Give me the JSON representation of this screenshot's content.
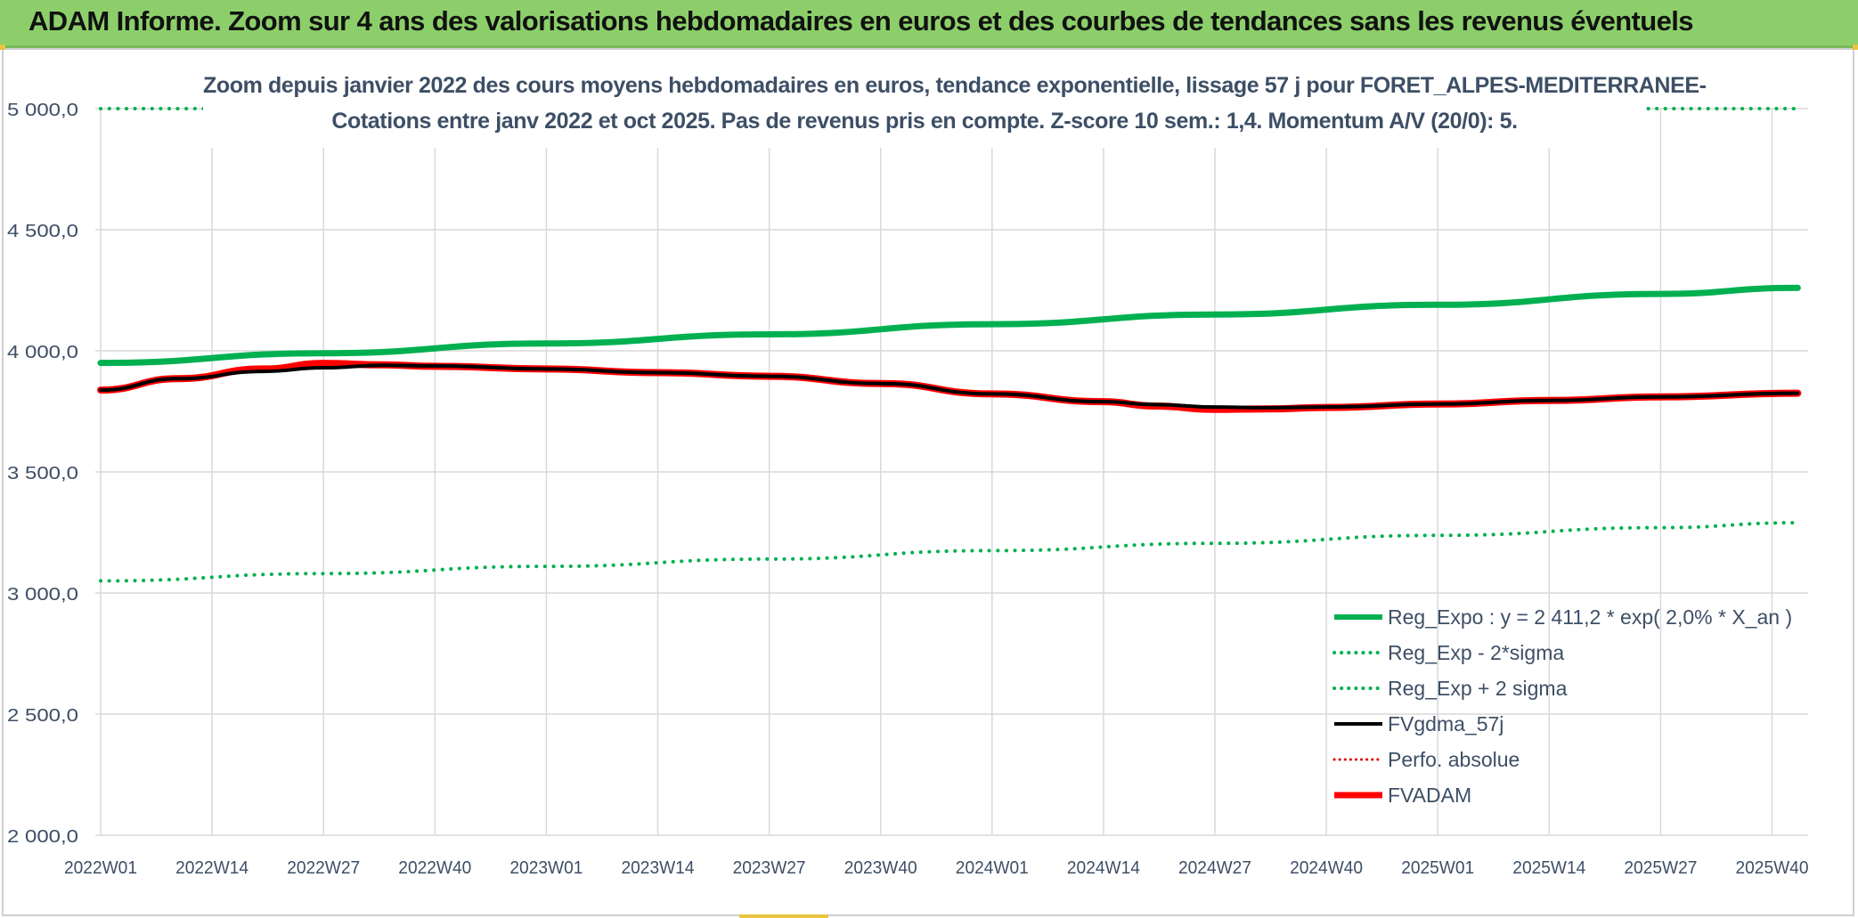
{
  "banner": {
    "title": "ADAM Informe. Zoom sur 4 ans des valorisations hebdomadaires en euros et des courbes de tendances sans les revenus éventuels"
  },
  "colors": {
    "banner_bg": "#8ccf6a",
    "reg_expo": "#00b050",
    "fvgdma": "#000000",
    "perfo": "#e00000",
    "fvadam": "#ff0000",
    "axis_text": "#3d4f66",
    "grid": "#d9d9d9"
  },
  "chart_data": {
    "type": "line",
    "title_line1": "Zoom depuis janvier 2022 des cours moyens hebdomadaires en euros, tendance exponentielle, lissage 57 j pour FORET_ALPES-MEDITERRANEE-",
    "title_line2": "Cotations entre janv 2022 et oct 2025. Pas de revenus pris en compte. Z-score 10 sem.: 1,4. Momentum A/V (20/0): 5.",
    "x_tick_labels": [
      "2022W01",
      "2022W14",
      "2022W27",
      "2022W40",
      "2023W01",
      "2023W14",
      "2023W27",
      "2023W40",
      "2024W01",
      "2024W14",
      "2024W27",
      "2024W40",
      "2025W01",
      "2025W14",
      "2025W27",
      "2025W40"
    ],
    "y_tick_labels": [
      "2 000,0",
      "2 500,0",
      "3 000,0",
      "3 500,0",
      "4 000,0",
      "4 500,0",
      "5 000,0"
    ],
    "ylim": [
      2000,
      5000
    ],
    "grid": true,
    "legend_position": "bottom-right",
    "series": [
      {
        "name": "Reg_Expo : y = 2 411,2 * exp( 2,0% *  X_an )",
        "style": "solid-thick",
        "color": "#00b050",
        "x": [
          "2022W01",
          "2022W27",
          "2023W01",
          "2023W27",
          "2024W01",
          "2024W27",
          "2025W01",
          "2025W27",
          "2025W43"
        ],
        "values": [
          3950,
          3990,
          4030,
          4068,
          4110,
          4150,
          4190,
          4235,
          4260
        ]
      },
      {
        "name": "Reg_Exp - 2*sigma",
        "style": "dotted",
        "color": "#00b050",
        "x": [
          "2022W01",
          "2022W27",
          "2023W01",
          "2023W27",
          "2024W01",
          "2024W27",
          "2025W01",
          "2025W27",
          "2025W43"
        ],
        "values": [
          3050,
          3080,
          3110,
          3140,
          3175,
          3205,
          3238,
          3270,
          3290
        ]
      },
      {
        "name": "Reg_Exp + 2 sigma",
        "style": "dotted",
        "color": "#00b050",
        "x": [
          "2022W01",
          "2025W43"
        ],
        "values": [
          5000,
          5000
        ]
      },
      {
        "name": "FVgdma_57j",
        "style": "solid",
        "color": "#000000",
        "x": [
          "2022W01",
          "2022W10",
          "2022W20",
          "2022W27",
          "2022W34",
          "2022W40",
          "2023W01",
          "2023W14",
          "2023W27",
          "2023W40",
          "2024W01",
          "2024W14",
          "2024W20",
          "2024W27",
          "2024W33",
          "2024W40",
          "2025W01",
          "2025W14",
          "2025W27",
          "2025W43"
        ],
        "values": [
          3838,
          3885,
          3915,
          3930,
          3940,
          3938,
          3925,
          3910,
          3895,
          3865,
          3822,
          3790,
          3778,
          3768,
          3765,
          3768,
          3780,
          3795,
          3810,
          3825
        ]
      },
      {
        "name": "Perfo. absolue",
        "style": "dotted",
        "color": "#e00000",
        "x": [],
        "values": []
      },
      {
        "name": "FVADAM",
        "style": "solid-thick",
        "color": "#ff0000",
        "x": [
          "2022W01",
          "2022W10",
          "2022W20",
          "2022W27",
          "2022W34",
          "2022W40",
          "2023W01",
          "2023W14",
          "2023W27",
          "2023W40",
          "2024W01",
          "2024W14",
          "2024W20",
          "2024W27",
          "2024W33",
          "2024W40",
          "2025W01",
          "2025W14",
          "2025W27",
          "2025W43"
        ],
        "values": [
          3838,
          3885,
          3925,
          3948,
          3942,
          3936,
          3925,
          3910,
          3895,
          3865,
          3822,
          3790,
          3772,
          3758,
          3760,
          3766,
          3780,
          3795,
          3810,
          3825
        ]
      }
    ]
  }
}
